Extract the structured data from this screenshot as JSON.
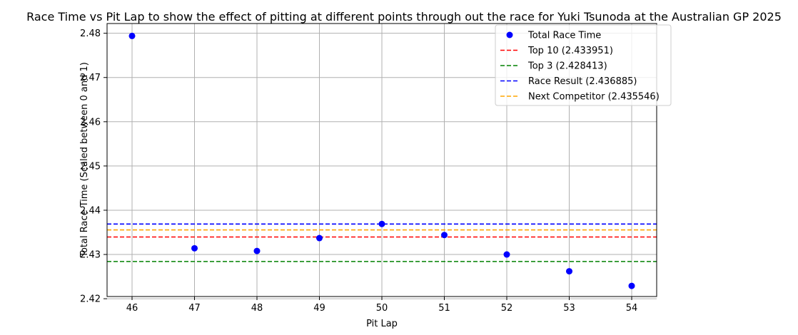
{
  "chart_data": {
    "type": "scatter",
    "title": "Race Time vs Pit Lap to show the effect of pitting at different points through out the race for Yuki Tsunoda at the Australian GP 2025",
    "xlabel": "Pit Lap",
    "ylabel": "Total Race Time (Scaled between 0 and 1)",
    "xlim": [
      45.6,
      54.4
    ],
    "ylim": [
      2.4205,
      2.4822
    ],
    "xticks": [
      "46",
      "47",
      "48",
      "49",
      "50",
      "51",
      "52",
      "53",
      "54"
    ],
    "yticks": [
      "2.42",
      "2.43",
      "2.44",
      "2.45",
      "2.46",
      "2.47",
      "2.48"
    ],
    "grid": true,
    "legend_position": "top-right",
    "series": [
      {
        "name": "Total Race Time",
        "kind": "scatter",
        "color": "#0000ff",
        "x": [
          46,
          47,
          48,
          49,
          50,
          51,
          52,
          53,
          54
        ],
        "y": [
          2.4794,
          2.4314,
          2.4308,
          2.4337,
          2.4369,
          2.4344,
          2.43,
          2.4262,
          2.4229
        ]
      }
    ],
    "reference_lines": [
      {
        "name": "Top 10 (2.433951)",
        "value": 2.433951,
        "color": "#ff0000"
      },
      {
        "name": "Top 3 (2.428413)",
        "value": 2.428413,
        "color": "#008000"
      },
      {
        "name": "Race Result (2.436885)",
        "value": 2.436885,
        "color": "#0000ff"
      },
      {
        "name": "Next Competitor (2.435546)",
        "value": 2.435546,
        "color": "#ffa500"
      }
    ]
  }
}
